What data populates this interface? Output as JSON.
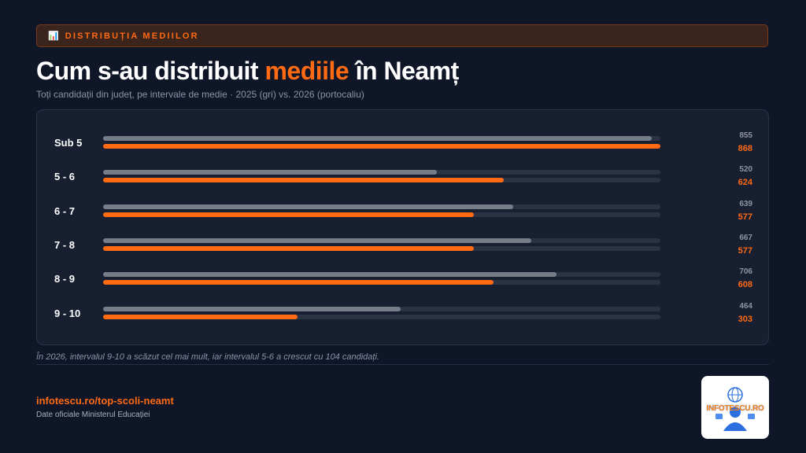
{
  "header": {
    "tag_icon": "📊",
    "tag_text": "DISTRIBUȚIA MEDIILOR",
    "title_before": "Cum s-au distribuit ",
    "title_accent": "mediile",
    "title_after": " în Neamț",
    "subtitle": "Toți candidații din județ, pe intervale de medie · 2025 (gri) vs. 2026 (portocaliu)"
  },
  "chart_data": {
    "type": "bar",
    "orientation": "horizontal",
    "categories": [
      "Sub 5",
      "5 - 6",
      "6 - 7",
      "7 - 8",
      "8 - 9",
      "9 - 10"
    ],
    "series": [
      {
        "name": "2025",
        "values": [
          855,
          520,
          639,
          667,
          706,
          464
        ],
        "color": "#767c88"
      },
      {
        "name": "2026",
        "values": [
          868,
          624,
          577,
          577,
          608,
          303
        ],
        "color": "#ff6a13"
      }
    ],
    "xlim": [
      0,
      868
    ]
  },
  "note": "În 2026, intervalul 9-10 a scăzut cel mai mult, iar intervalul 5-6 a crescut cu 104 candidați.",
  "footer": {
    "url": "infotescu.ro/top-scoli-neamt",
    "source": "Date oficiale Ministerul Educației",
    "logo_text": "INFOTESCU.RO"
  }
}
